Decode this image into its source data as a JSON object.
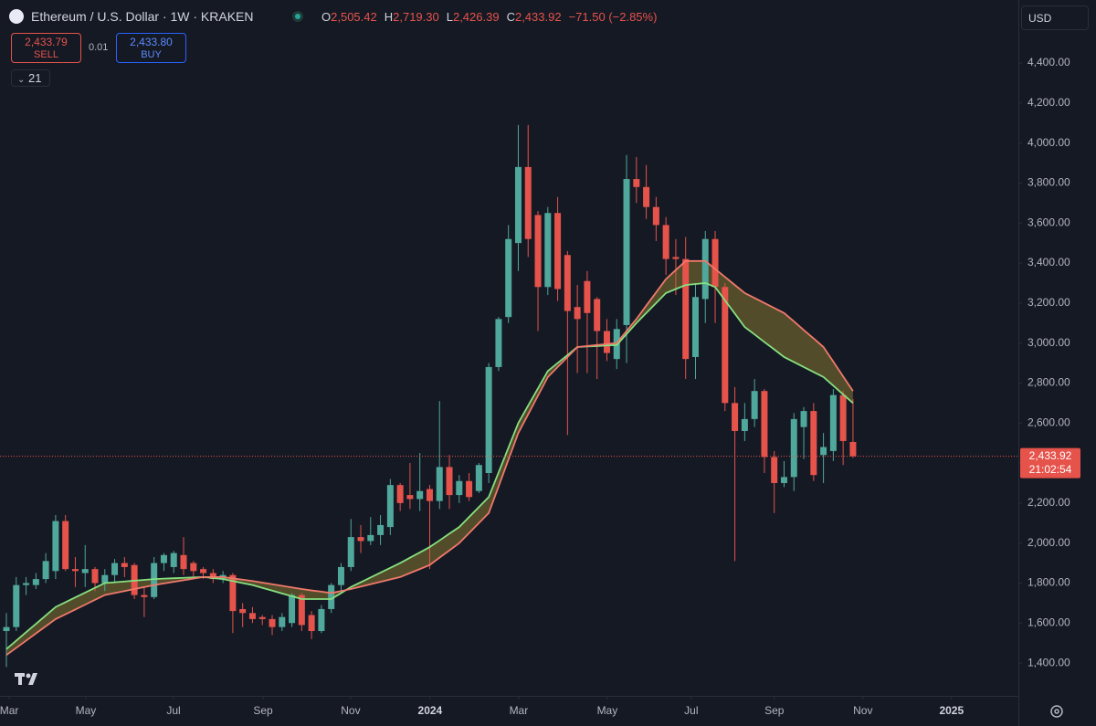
{
  "header": {
    "title": "Ethereum / U.S. Dollar · 1W · KRAKEN",
    "ohlc": [
      {
        "key": "O",
        "value": "2,505.42"
      },
      {
        "key": "H",
        "value": "2,719.30"
      },
      {
        "key": "L",
        "value": "2,426.39"
      },
      {
        "key": "C",
        "value": "2,433.92"
      }
    ],
    "change": "−71.50 (−2.85%)",
    "sell": {
      "price": "2,433.79",
      "label": "SELL"
    },
    "spread": "0.01",
    "buy": {
      "price": "2,433.80",
      "label": "BUY"
    },
    "indicator": "21",
    "currency": "USD"
  },
  "chart_data": {
    "type": "candlestick",
    "up_color": "#4fa89b",
    "down_color": "#e5534b",
    "open": [
      1560,
      1580,
      1790,
      1790,
      1820,
      1860,
      2110,
      1870,
      1850,
      1870,
      1800,
      1840,
      1900,
      1890,
      1740,
      1730,
      1900,
      1880,
      1940,
      1900,
      1870,
      1850,
      1820,
      1840,
      1670,
      1650,
      1630,
      1620,
      1580,
      1600,
      1740,
      1640,
      1560,
      1670,
      1790,
      1880,
      2030,
      2010,
      2040,
      2080,
      2290,
      2240,
      2220,
      2270,
      2210,
      2380,
      2240,
      2310,
      2260,
      2350,
      2880,
      3130,
      3500,
      3880,
      3640,
      3280,
      3650,
      3440,
      3180,
      3310,
      3220,
      3060,
      2920,
      3090,
      3820,
      3780,
      3680,
      3590,
      3430,
      3420,
      2930,
      3220,
      3520,
      3280,
      2700,
      2560,
      2620,
      2760,
      2430,
      2300,
      2330,
      2580,
      2660,
      2440,
      2460,
      2740,
      2505.42
    ],
    "high": [
      1650,
      1830,
      1830,
      1850,
      1950,
      2140,
      2140,
      1930,
      1990,
      1880,
      1870,
      1920,
      1930,
      1900,
      1780,
      1930,
      1950,
      1960,
      2030,
      1910,
      1880,
      1870,
      1860,
      1850,
      1700,
      1680,
      1640,
      1640,
      1650,
      1750,
      1750,
      1660,
      1690,
      1800,
      1900,
      2120,
      2090,
      2130,
      2140,
      2320,
      2300,
      2400,
      2450,
      2290,
      2710,
      2440,
      2340,
      2350,
      2400,
      2900,
      3130,
      3590,
      4090,
      4090,
      3660,
      3680,
      3730,
      3460,
      3290,
      3360,
      3230,
      3120,
      3120,
      3940,
      3930,
      3890,
      3730,
      3630,
      3520,
      3530,
      3300,
      3560,
      3560,
      3300,
      2780,
      2700,
      2820,
      2770,
      2460,
      2410,
      2650,
      2680,
      2700,
      2550,
      2770,
      2760,
      2719.3
    ],
    "low": [
      1380,
      1560,
      1740,
      1770,
      1800,
      1820,
      1860,
      1780,
      1780,
      1760,
      1760,
      1800,
      1830,
      1720,
      1630,
      1720,
      1860,
      1850,
      1840,
      1820,
      1820,
      1800,
      1800,
      1550,
      1580,
      1600,
      1590,
      1540,
      1560,
      1580,
      1560,
      1520,
      1550,
      1650,
      1760,
      1860,
      1950,
      1990,
      1990,
      2040,
      2160,
      2170,
      2160,
      1870,
      2170,
      2170,
      2200,
      2210,
      2250,
      2300,
      2860,
      3100,
      3360,
      3430,
      3060,
      3240,
      3210,
      2540,
      2850,
      2850,
      2820,
      2910,
      2870,
      2900,
      3700,
      3620,
      3510,
      3340,
      3240,
      2820,
      2820,
      3100,
      3100,
      2660,
      1910,
      2510,
      2580,
      2350,
      2150,
      2280,
      2260,
      2420,
      2310,
      2300,
      2410,
      2390,
      2426.39
    ],
    "close": [
      1580,
      1790,
      1800,
      1820,
      1910,
      2110,
      1870,
      1860,
      1870,
      1800,
      1840,
      1900,
      1880,
      1740,
      1730,
      1900,
      1940,
      1950,
      1870,
      1860,
      1850,
      1820,
      1840,
      1660,
      1650,
      1620,
      1620,
      1580,
      1630,
      1740,
      1590,
      1560,
      1670,
      1790,
      1880,
      2030,
      2010,
      2040,
      2090,
      2290,
      2200,
      2220,
      2260,
      2210,
      2380,
      2240,
      2310,
      2230,
      2390,
      2880,
      3120,
      3520,
      3880,
      3520,
      3280,
      3650,
      3270,
      3160,
      3120,
      3150,
      3060,
      2950,
      3070,
      3820,
      3780,
      3680,
      3590,
      3420,
      3420,
      2920,
      3230,
      3520,
      3280,
      2700,
      2560,
      2620,
      2760,
      2430,
      2300,
      2330,
      2620,
      2660,
      2340,
      2480,
      2740,
      2510,
      2433.92
    ],
    "overlays": [
      {
        "color": "#86e07f",
        "values": [
          1470,
          1512,
          1554,
          1596,
          1638,
          1680,
          1704,
          1728,
          1752,
          1776,
          1800,
          1804,
          1808,
          1812,
          1816,
          1820,
          1822,
          1824,
          1826,
          1828,
          1830,
          1825,
          1820,
          1810,
          1800,
          1790,
          1776,
          1762,
          1748,
          1734,
          1720,
          1720,
          1720,
          1720,
          1750,
          1780,
          1804,
          1828,
          1852,
          1876,
          1900,
          1927,
          1953,
          1980,
          2013,
          2047,
          2080,
          2130,
          2180,
          2230,
          2353,
          2477,
          2600,
          2687,
          2773,
          2860,
          2900,
          2940,
          2980,
          2983,
          2985,
          2988,
          2990,
          3045,
          3100,
          3150,
          3200,
          3250,
          3270,
          3290,
          3295,
          3300,
          3280,
          3213,
          3147,
          3080,
          3043,
          3005,
          2968,
          2930,
          2905,
          2880,
          2855,
          2830,
          2787,
          2743,
          2700
        ]
      },
      {
        "color": "#f0796b",
        "values": [
          1440,
          1476,
          1512,
          1548,
          1584,
          1620,
          1644,
          1668,
          1692,
          1716,
          1740,
          1750,
          1760,
          1770,
          1780,
          1790,
          1798,
          1806,
          1814,
          1822,
          1830,
          1830,
          1830,
          1823,
          1817,
          1810,
          1802,
          1794,
          1786,
          1778,
          1770,
          1763,
          1757,
          1750,
          1760,
          1770,
          1782,
          1794,
          1806,
          1818,
          1830,
          1850,
          1870,
          1890,
          1927,
          1963,
          2000,
          2050,
          2100,
          2150,
          2283,
          2417,
          2550,
          2643,
          2737,
          2830,
          2880,
          2930,
          2980,
          2985,
          2990,
          2995,
          3000,
          3060,
          3120,
          3187,
          3253,
          3320,
          3365,
          3410,
          3410,
          3410,
          3370,
          3330,
          3290,
          3250,
          3225,
          3200,
          3175,
          3150,
          3108,
          3065,
          3023,
          2980,
          2907,
          2833,
          2760
        ]
      }
    ],
    "band_fill": "rgba(160,140,50,0.45)",
    "xlim": [
      -0.65,
      102.8
    ],
    "xticks": [
      {
        "value": 0.28,
        "label": "Mar"
      },
      {
        "value": 8.07,
        "label": "May"
      },
      {
        "value": 16.98,
        "label": "Jul"
      },
      {
        "value": 26.07,
        "label": "Sep"
      },
      {
        "value": 34.97,
        "label": "Nov"
      },
      {
        "value": 43.04,
        "label": "2024"
      },
      {
        "value": 52.04,
        "label": "Mar"
      },
      {
        "value": 61.04,
        "label": "May"
      },
      {
        "value": 69.57,
        "label": "Jul"
      },
      {
        "value": 78.01,
        "label": "Sep"
      },
      {
        "value": 87.01,
        "label": "Nov"
      },
      {
        "value": 96.01,
        "label": "2025"
      }
    ],
    "ylim": [
      1236,
      4715
    ],
    "yticks": [
      {
        "value": 1400,
        "label": "1,400.00"
      },
      {
        "value": 1600,
        "label": "1,600.00"
      },
      {
        "value": 1800,
        "label": "1,800.00"
      },
      {
        "value": 2000,
        "label": "2,000.00"
      },
      {
        "value": 2200,
        "label": "2,200.00"
      },
      {
        "value": 2400,
        "label": "2,400.00"
      },
      {
        "value": 2600,
        "label": "2,600.00"
      },
      {
        "value": 2800,
        "label": "2,800.00"
      },
      {
        "value": 3000,
        "label": "3,000.00"
      },
      {
        "value": 3200,
        "label": "3,200.00"
      },
      {
        "value": 3400,
        "label": "3,400.00"
      },
      {
        "value": 3600,
        "label": "3,600.00"
      },
      {
        "value": 3800,
        "label": "3,800.00"
      },
      {
        "value": 4000,
        "label": "4,000.00"
      },
      {
        "value": 4200,
        "label": "4,200.00"
      },
      {
        "value": 4400,
        "label": "4,400.00"
      }
    ],
    "last_price": {
      "value": 2433.92,
      "label": "2,433.92"
    },
    "countdown": "21:02:54"
  }
}
